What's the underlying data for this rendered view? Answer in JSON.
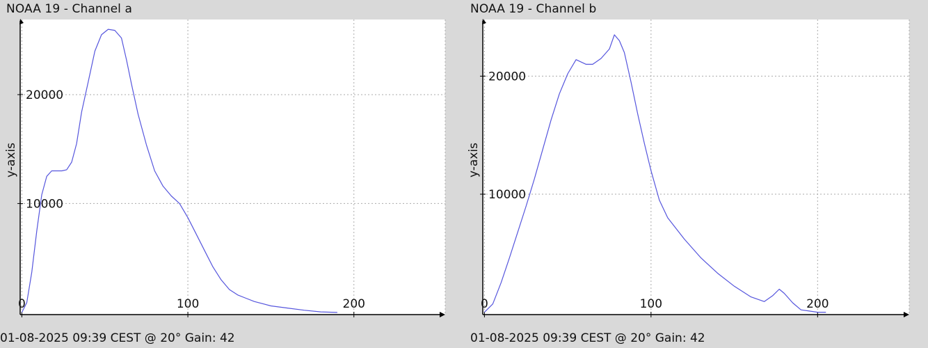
{
  "colors": {
    "background": "#d9d9d9",
    "plot_bg": "#ffffff",
    "series": "#5555dd",
    "grid": "#aaaaaa",
    "axis": "#000000"
  },
  "panels": [
    {
      "title": "NOAA 19 - Channel a",
      "footer": "01-08-2025 09:39 CEST @ 20° Gain: 42"
    },
    {
      "title": "NOAA 19 - Channel b",
      "footer": "01-08-2025 09:39 CEST @ 20° Gain: 42"
    }
  ],
  "chart_data": [
    {
      "type": "line",
      "title": "NOAA 19 - Channel a",
      "xlabel": "",
      "ylabel": "y-axis",
      "xlim": [
        -1,
        255
      ],
      "ylim": [
        -200,
        26900
      ],
      "xticks": [
        "0",
        "100",
        "200"
      ],
      "yticks": [
        "10000",
        "20000"
      ],
      "xtick_values": [
        0,
        100,
        200
      ],
      "ytick_values": [
        10000,
        20000
      ],
      "grid": true,
      "series": [
        {
          "x": [
            0,
            3,
            6,
            9,
            12,
            15,
            18,
            21,
            24,
            27,
            30,
            33,
            36,
            40,
            44,
            48,
            52,
            56,
            60,
            63,
            66,
            70,
            75,
            80,
            85,
            90,
            95,
            100,
            105,
            110,
            115,
            120,
            125,
            130,
            135,
            140,
            150,
            160,
            170,
            180,
            190
          ],
          "y": [
            0,
            900,
            3700,
            7500,
            10800,
            12500,
            13000,
            13000,
            13000,
            13100,
            13800,
            15500,
            18400,
            21200,
            24000,
            25500,
            26000,
            25900,
            25200,
            23200,
            21000,
            18200,
            15400,
            13000,
            11600,
            10700,
            10000,
            8700,
            7200,
            5700,
            4200,
            3000,
            2100,
            1600,
            1300,
            1000,
            600,
            400,
            200,
            50,
            0
          ]
        }
      ]
    },
    {
      "type": "line",
      "title": "NOAA 19 - Channel b",
      "xlabel": "",
      "ylabel": "y-axis",
      "xlim": [
        -1,
        255
      ],
      "ylim": [
        -200,
        24800
      ],
      "xticks": [
        "0",
        "100",
        "200"
      ],
      "yticks": [
        "10000",
        "20000"
      ],
      "xtick_values": [
        0,
        100,
        200
      ],
      "ytick_values": [
        10000,
        20000
      ],
      "grid": true,
      "series": [
        {
          "x": [
            0,
            5,
            10,
            15,
            20,
            25,
            30,
            35,
            40,
            45,
            50,
            55,
            58,
            61,
            65,
            70,
            75,
            78,
            81,
            84,
            88,
            92,
            96,
            100,
            105,
            110,
            120,
            130,
            140,
            150,
            160,
            168,
            173,
            177,
            180,
            185,
            190,
            195,
            200,
            205
          ],
          "y": [
            0,
            700,
            2500,
            4600,
            6800,
            9000,
            11300,
            13800,
            16300,
            18500,
            20200,
            21400,
            21200,
            21000,
            21000,
            21500,
            22300,
            23500,
            23000,
            22000,
            19500,
            16800,
            14300,
            12000,
            9500,
            8000,
            6200,
            4600,
            3300,
            2200,
            1300,
            900,
            1400,
            1950,
            1600,
            800,
            200,
            100,
            0,
            0
          ]
        }
      ]
    }
  ]
}
